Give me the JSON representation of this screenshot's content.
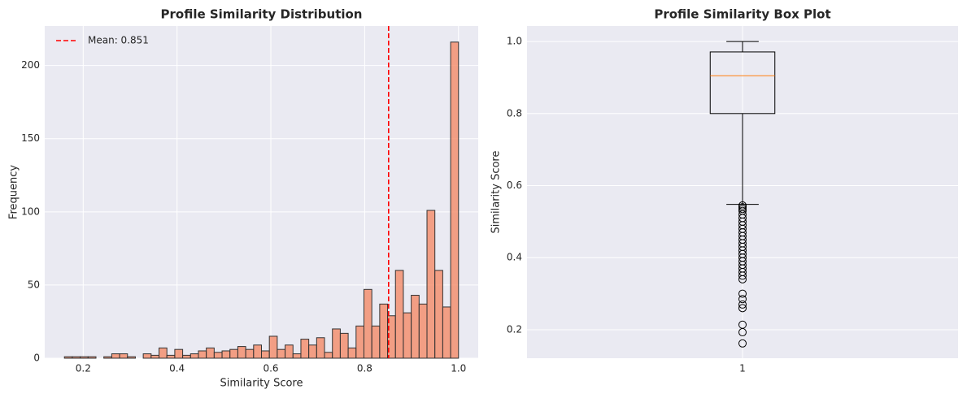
{
  "chart_data": [
    {
      "type": "histogram",
      "title": "Profile Similarity Distribution",
      "x_label": "Similarity Score",
      "y_label": "Frequency",
      "bins": [
        0.16,
        0.1768,
        0.1936,
        0.2104,
        0.2272,
        0.244,
        0.2608,
        0.2776,
        0.2944,
        0.3112,
        0.328,
        0.3448,
        0.3616,
        0.3784,
        0.3952,
        0.412,
        0.4288,
        0.4456,
        0.4624,
        0.4792,
        0.496,
        0.5128,
        0.5296,
        0.5464,
        0.5632,
        0.58,
        0.5968,
        0.6136,
        0.6304,
        0.6472,
        0.664,
        0.6808,
        0.6976,
        0.7144,
        0.7312,
        0.748,
        0.7648,
        0.7816,
        0.7984,
        0.8152,
        0.832,
        0.8488,
        0.8656,
        0.8824,
        0.8992,
        0.916,
        0.9328,
        0.9496,
        0.9664,
        0.9832,
        1.0
      ],
      "values": [
        1,
        1,
        1,
        1,
        0,
        1,
        3,
        3,
        1,
        0,
        3,
        2,
        7,
        2,
        6,
        2,
        3,
        5,
        7,
        4,
        5,
        6,
        8,
        6,
        9,
        5,
        15,
        6,
        9,
        3,
        13,
        9,
        14,
        4,
        20,
        17,
        7,
        22,
        47,
        22,
        37,
        29,
        60,
        31,
        43,
        37,
        101,
        60,
        35,
        216
      ],
      "color": "#f4845f",
      "mean_line": {
        "value": 0.851,
        "label": "Mean: 0.851",
        "color": "#ff0000"
      },
      "legend": "upper left",
      "xlim": [
        0.118,
        1.042
      ],
      "ylim": [
        0,
        227
      ],
      "xticks": [
        0.2,
        0.4,
        0.6,
        0.8,
        {
          "value": 1,
          "label": "1.0"
        }
      ],
      "yticks": [
        0,
        50,
        100,
        150,
        200
      ],
      "grid": true
    },
    {
      "type": "box",
      "title": "Profile Similarity Box Plot",
      "y_label": "Similarity Score",
      "categories": [
        "1"
      ],
      "whisker_low": 0.548,
      "q1": 0.8,
      "median": 0.905,
      "q3": 0.971,
      "whisker_high": 1,
      "outliers": [
        0.545,
        0.54,
        0.535,
        0.53,
        0.52,
        0.51,
        0.5,
        0.49,
        0.48,
        0.47,
        0.46,
        0.45,
        0.44,
        0.43,
        0.42,
        0.41,
        0.4,
        0.39,
        0.38,
        0.37,
        0.36,
        0.35,
        0.34,
        0.3,
        0.285,
        0.27,
        0.26,
        0.214,
        0.193,
        0.162
      ],
      "median_color": "#ff7f0e",
      "ylim": [
        0.121,
        1.043
      ],
      "yticks": [
        0.2,
        0.4,
        0.6,
        0.8,
        {
          "value": 1,
          "label": "1.0"
        }
      ],
      "grid": true
    }
  ]
}
